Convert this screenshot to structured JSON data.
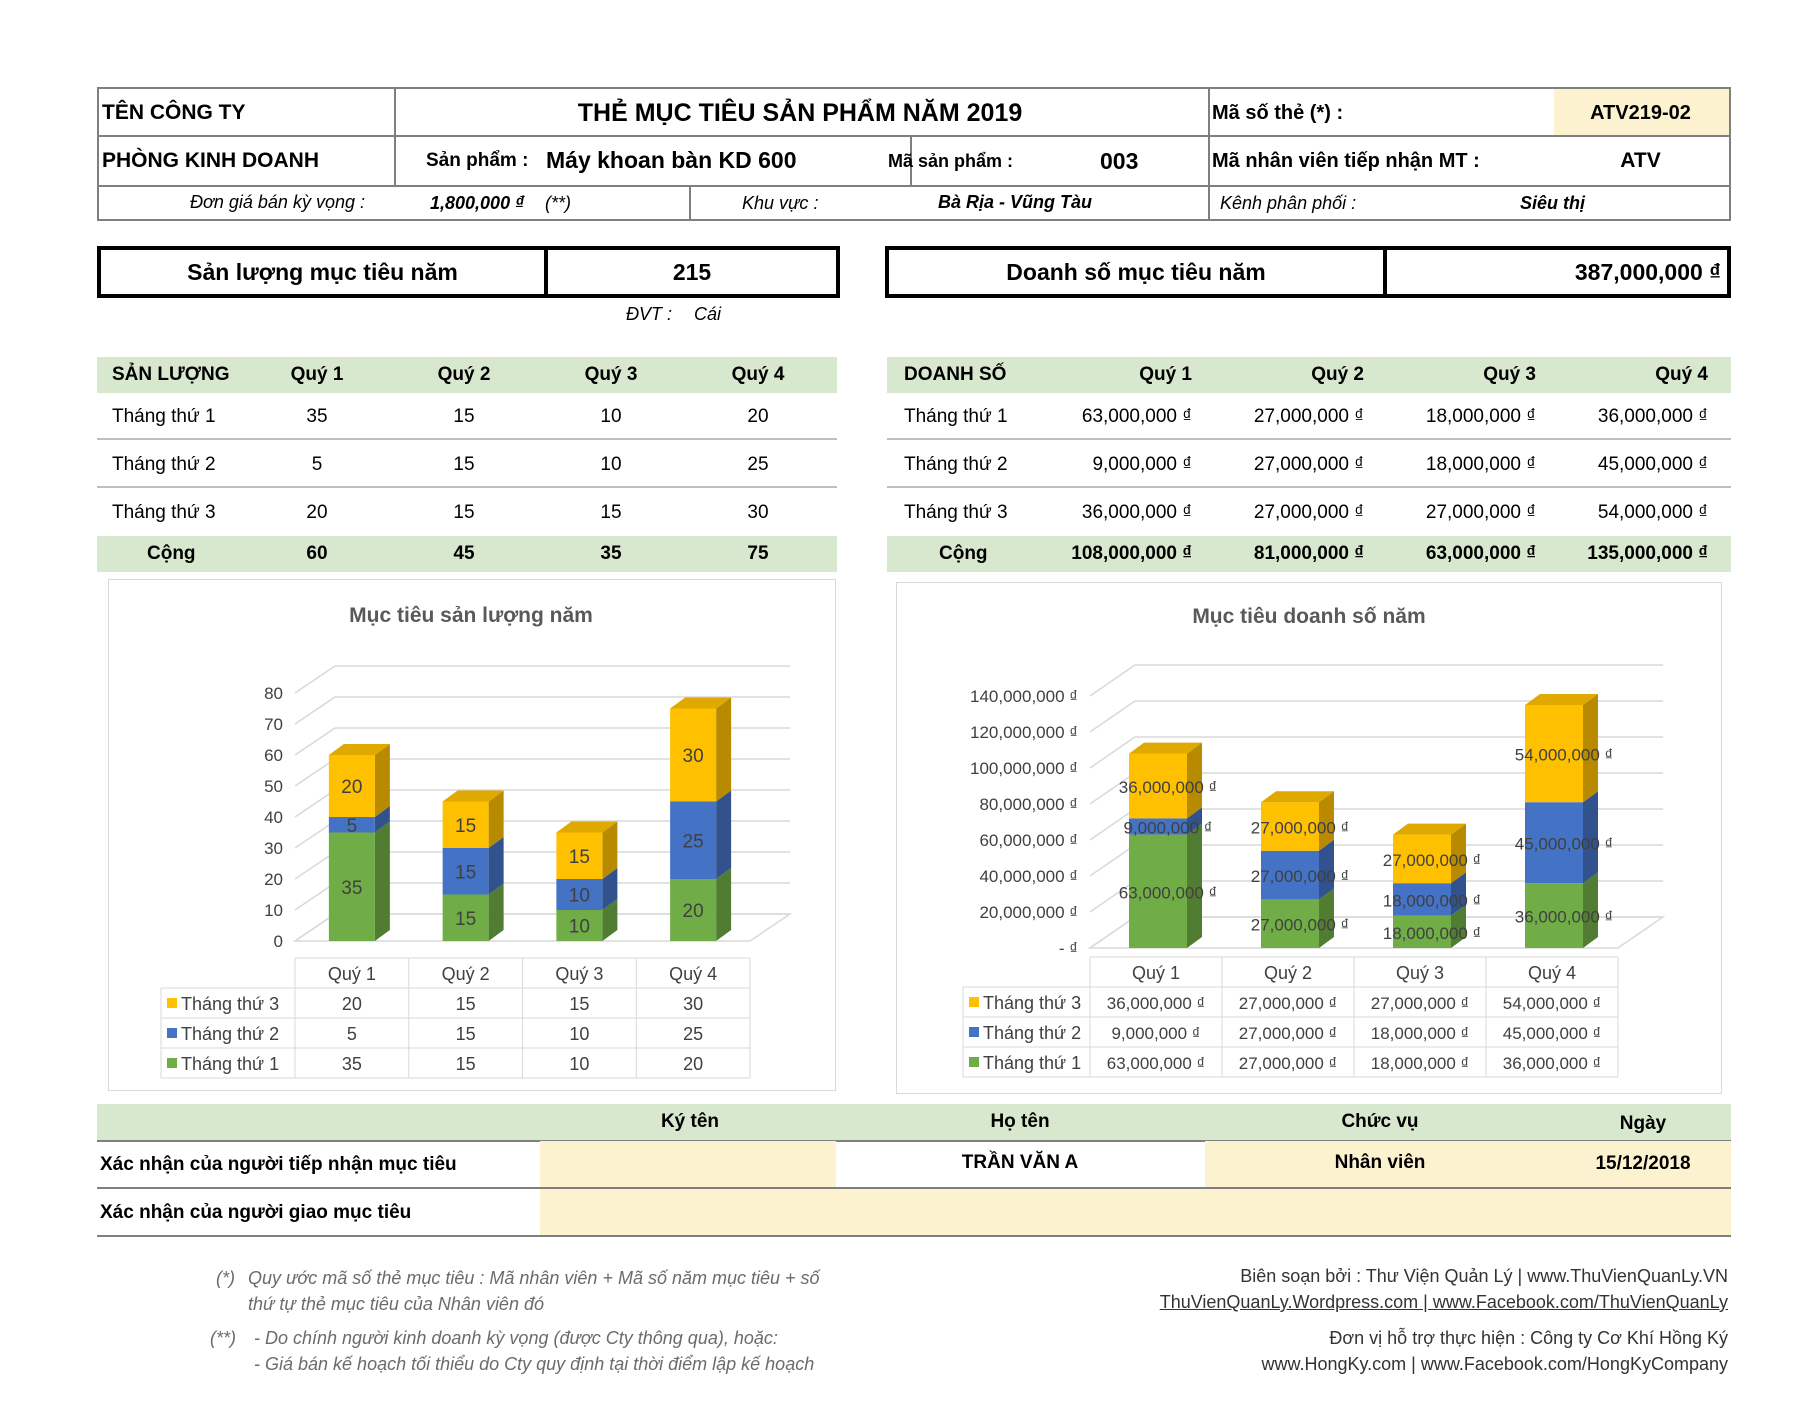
{
  "header": {
    "company": "TÊN CÔNG TY",
    "title": "THẺ MỤC TIÊU SẢN PHẨM NĂM 2019",
    "card_no_label": "Mã số thẻ (*) :",
    "card_no": "ATV219-02",
    "department": "PHÒNG KINH DOANH",
    "product_label": "Sản phẩm :",
    "product": "Máy khoan bàn KD 600",
    "product_code_label": "Mã sản phẩm :",
    "product_code": "003",
    "employee_label": "Mã nhân viên tiếp nhận MT :",
    "employee": "ATV",
    "price_label": "Đơn giá bán kỳ vọng :",
    "price": "1,800,000 ₫",
    "price_note": "(**)",
    "region_label": "Khu vực :",
    "region": "Bà Rịa - Vũng Tàu",
    "channel_label": "Kênh phân phối :",
    "channel": "Siêu thị"
  },
  "targets": {
    "qty_label": "Sản lượng mục tiêu năm",
    "qty": "215",
    "unit_label": "ĐVT :",
    "unit": "Cái",
    "rev_label": "Doanh số mục tiêu năm",
    "rev": "387,000,000 ₫"
  },
  "qty_table": {
    "headers": [
      "SẢN LƯỢNG",
      "Quý 1",
      "Quý 2",
      "Quý 3",
      "Quý 4"
    ],
    "rows": [
      [
        "Tháng thứ 1",
        "35",
        "15",
        "10",
        "20"
      ],
      [
        "Tháng thứ 2",
        "5",
        "15",
        "10",
        "25"
      ],
      [
        "Tháng thứ 3",
        "20",
        "15",
        "15",
        "30"
      ]
    ],
    "total": [
      "Cộng",
      "60",
      "45",
      "35",
      "75"
    ]
  },
  "rev_table": {
    "headers": [
      "DOANH SỐ",
      "Quý 1",
      "Quý 2",
      "Quý 3",
      "Quý 4"
    ],
    "rows": [
      [
        "Tháng thứ 1",
        "63,000,000 ₫",
        "27,000,000 ₫",
        "18,000,000 ₫",
        "36,000,000 ₫"
      ],
      [
        "Tháng thứ 2",
        "9,000,000 ₫",
        "27,000,000 ₫",
        "18,000,000 ₫",
        "45,000,000 ₫"
      ],
      [
        "Tháng thứ 3",
        "36,000,000 ₫",
        "27,000,000 ₫",
        "27,000,000 ₫",
        "54,000,000 ₫"
      ]
    ],
    "total": [
      "Cộng",
      "108,000,000 ₫",
      "81,000,000 ₫",
      "63,000,000 ₫",
      "135,000,000 ₫"
    ]
  },
  "chart_data": [
    {
      "type": "bar",
      "stacked": true,
      "title": "Mục tiêu sản lượng năm",
      "categories": [
        "Quý 1",
        "Quý 2",
        "Quý 3",
        "Quý 4"
      ],
      "series": [
        {
          "name": "Tháng thứ 1",
          "values": [
            35,
            15,
            10,
            20
          ],
          "color": "#70ad47"
        },
        {
          "name": "Tháng thứ 2",
          "values": [
            5,
            15,
            10,
            25
          ],
          "color": "#4472c4"
        },
        {
          "name": "Tháng thứ 3",
          "values": [
            20,
            15,
            15,
            30
          ],
          "color": "#ffc000"
        }
      ],
      "value_labels": [
        [
          "35",
          "15",
          "10",
          "20"
        ],
        [
          "5",
          "15",
          "10",
          "25"
        ],
        [
          "20",
          "15",
          "15",
          "30"
        ]
      ],
      "ylim": [
        0,
        80
      ],
      "yticks": [
        0,
        10,
        20,
        30,
        40,
        50,
        60,
        70,
        80
      ],
      "ytick_labels": [
        "0",
        "10",
        "20",
        "30",
        "40",
        "50",
        "60",
        "70",
        "80"
      ],
      "legend": "data-table-bottom"
    },
    {
      "type": "bar",
      "stacked": true,
      "title": "Mục tiêu doanh số năm",
      "categories": [
        "Quý 1",
        "Quý 2",
        "Quý 3",
        "Quý 4"
      ],
      "series": [
        {
          "name": "Tháng thứ 1",
          "values": [
            63000000,
            27000000,
            18000000,
            36000000
          ],
          "color": "#70ad47"
        },
        {
          "name": "Tháng thứ 2",
          "values": [
            9000000,
            27000000,
            18000000,
            45000000
          ],
          "color": "#4472c4"
        },
        {
          "name": "Tháng thứ 3",
          "values": [
            36000000,
            27000000,
            27000000,
            54000000
          ],
          "color": "#ffc000"
        }
      ],
      "value_labels": [
        [
          "63,000,000 ₫",
          "27,000,000 ₫",
          "18,000,000 ₫",
          "36,000,000 ₫"
        ],
        [
          "9,000,000 ₫",
          "27,000,000 ₫",
          "18,000,000 ₫",
          "45,000,000 ₫"
        ],
        [
          "36,000,000 ₫",
          "27,000,000 ₫",
          "27,000,000 ₫",
          "54,000,000 ₫"
        ]
      ],
      "ylim": [
        0,
        140000000
      ],
      "yticks": [
        0,
        20000000,
        40000000,
        60000000,
        80000000,
        100000000,
        120000000,
        140000000
      ],
      "ytick_labels": [
        "-  ₫",
        "20,000,000 ₫",
        "40,000,000 ₫",
        "60,000,000 ₫",
        "80,000,000 ₫",
        "100,000,000 ₫",
        "120,000,000 ₫",
        "140,000,000 ₫"
      ],
      "legend": "data-table-bottom"
    }
  ],
  "signature": {
    "headers": [
      "Ký tên",
      "Họ tên",
      "Chức vụ",
      "Ngày"
    ],
    "row1_label": "Xác nhận của người tiếp nhận mục tiêu",
    "row1_name": "TRẦN VĂN A",
    "row1_position": "Nhân viên",
    "row1_date": "15/12/2018",
    "row2_label": "Xác nhận của người giao mục tiêu"
  },
  "footer": {
    "note1_mark": "(*)",
    "note1_line1": "Quy ước mã số thẻ mục tiêu : Mã nhân viên + Mã số năm mục tiêu + số",
    "note1_line2": "thứ tự thẻ mục tiêu của Nhân viên đó",
    "note2_mark": "(**)",
    "note2_line1": "- Do chính người kinh doanh kỳ vọng (được Cty thông qua), hoặc:",
    "note2_line2": "- Giá bán kế hoạch tối thiểu do Cty quy định tại thời điểm lập kế hoạch",
    "credit1": "Biên soạn bởi : Thư Viện Quản Lý | www.ThuVienQuanLy.VN",
    "credit2": "ThuVienQuanLy.Wordpress.com | www.Facebook.com/ThuVienQuanLy",
    "credit3": "Đơn vị hỗ trợ thực hiện : Công ty Cơ Khí Hồng Ký",
    "credit4": "www.HongKy.com | www.Facebook.com/HongKyCompany"
  }
}
